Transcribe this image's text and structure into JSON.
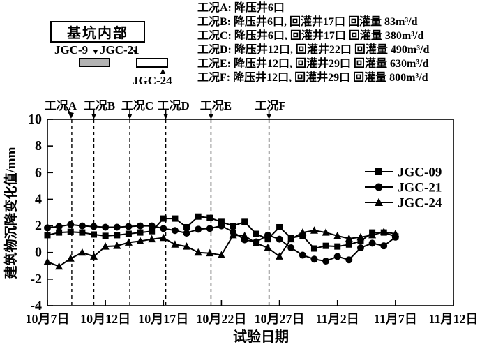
{
  "site_diagram": {
    "pit_box_label": "基坑内部",
    "jgc9_label": "JGC-9",
    "jgc21_label": "JGC-21",
    "jgc24_label": "JGC-24",
    "marker_down": "▼",
    "marker_up": "▲",
    "building_fill_gray": "#b3b3b3"
  },
  "conditions_legend": {
    "lines": [
      "工况A: 降压井6口",
      "工况B: 降压井6口, 回灌井17口 回灌量 83m³/d",
      "工况C: 降压井6口, 回灌井17口 回灌量 380m³/d",
      "工况D: 降压井12口, 回灌井22口 回灌量 490m³/d",
      "工况E: 降压井12口, 回灌井29口 回灌量 630m³/d",
      "工况F: 降压井12口, 回灌井29口 回灌量 800m³/d"
    ]
  },
  "chart_data": {
    "type": "line",
    "title": "",
    "xlabel": "试验日期",
    "ylabel": "建筑物沉降变化值/mm",
    "ylim": [
      -4,
      10
    ],
    "yticks": [
      10,
      8,
      6,
      4,
      2,
      0,
      -2,
      -4
    ],
    "x_tick_labels": [
      "10月7日",
      "10月12日",
      "10月17日",
      "10月22日",
      "10月27日",
      "11月2日",
      "11月7日",
      "11月12日"
    ],
    "x_tick_days": [
      0,
      5,
      10,
      15,
      20,
      25,
      30,
      35
    ],
    "xlim_days": [
      0,
      35
    ],
    "grid": false,
    "legend_position": "inside-right-upper",
    "line_color": "#000000",
    "x_days": [
      0,
      1,
      2,
      3,
      4,
      5,
      6,
      7,
      8,
      9,
      10,
      11,
      12,
      13,
      14,
      15,
      16,
      17,
      18,
      19,
      20,
      21,
      22,
      23,
      24,
      25,
      26,
      27,
      28,
      29,
      30
    ],
    "series": [
      {
        "name": "JGC-09",
        "marker": "square",
        "values": [
          1.3,
          1.5,
          1.55,
          1.5,
          1.35,
          1.25,
          1.3,
          1.4,
          1.5,
          1.6,
          2.55,
          2.55,
          1.9,
          2.7,
          2.6,
          2.3,
          2.0,
          2.3,
          1.4,
          1.0,
          1.9,
          1.1,
          1.25,
          0.3,
          0.5,
          0.45,
          0.6,
          0.85,
          1.5,
          1.5,
          1.2
        ]
      },
      {
        "name": "JGC-21",
        "marker": "circle",
        "values": [
          1.85,
          1.95,
          2.1,
          2.0,
          1.95,
          1.9,
          1.9,
          1.95,
          2.0,
          2.0,
          1.8,
          1.65,
          1.45,
          1.75,
          1.8,
          2.0,
          1.55,
          0.95,
          0.8,
          1.3,
          1.0,
          0.35,
          -0.2,
          -0.5,
          -0.65,
          -0.3,
          -0.55,
          0.35,
          0.7,
          0.5,
          1.15
        ]
      },
      {
        "name": "JGC-24",
        "marker": "triangle",
        "values": [
          -0.7,
          -1.05,
          -0.45,
          0.0,
          -0.3,
          0.45,
          0.5,
          0.75,
          0.85,
          1.0,
          1.1,
          0.6,
          0.45,
          0.0,
          -0.05,
          -0.2,
          1.3,
          1.25,
          0.7,
          0.35,
          -0.3,
          1.0,
          1.5,
          1.65,
          1.5,
          1.25,
          1.05,
          1.15,
          1.3,
          1.55,
          1.4
        ]
      }
    ],
    "condition_marks": [
      {
        "label": "工况A",
        "day": 2.1
      },
      {
        "label": "工况B",
        "day": 4.0
      },
      {
        "label": "工况C",
        "day": 7.1
      },
      {
        "label": "工况D",
        "day": 10.2
      },
      {
        "label": "工况E",
        "day": 14.1
      },
      {
        "label": "工况F",
        "day": 19.1
      }
    ]
  }
}
